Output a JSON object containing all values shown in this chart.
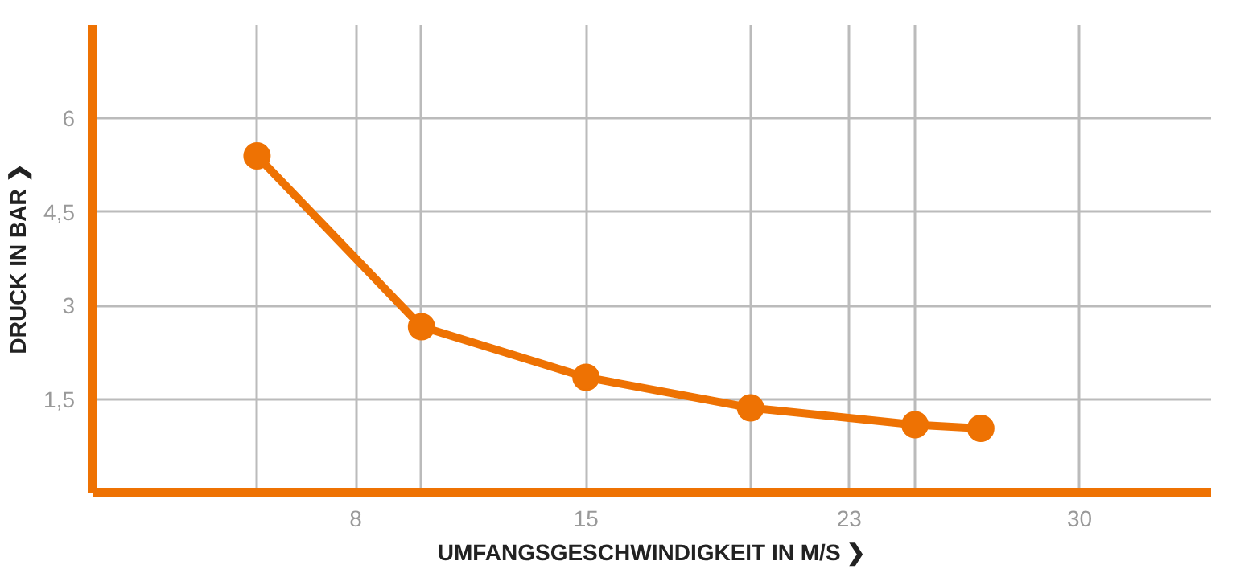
{
  "chart_data": {
    "type": "line",
    "xlabel": "UMFANGSGESCHWINDIGKEIT IN M/S ❯",
    "ylabel": "DRUCK IN BAR ❯",
    "x": [
      5,
      10,
      15,
      20,
      25,
      27
    ],
    "series": [
      {
        "color": "#ee7203",
        "values": [
          5.4,
          2.66,
          1.85,
          1.36,
          1.09,
          1.03
        ]
      }
    ],
    "xlim": [
      0,
      34
    ],
    "ylim": [
      0,
      7.5
    ],
    "xticks": [
      {
        "value": 5,
        "label": null
      },
      8,
      {
        "value": 10,
        "label": null
      },
      15,
      {
        "value": 20,
        "label": null
      },
      23,
      {
        "value": 25,
        "label": null
      },
      30
    ],
    "yticks": [
      {
        "value": 1.5,
        "label": "1,5"
      },
      3,
      {
        "value": 4.5,
        "label": "4,5"
      },
      6
    ],
    "grid": true,
    "marker": "circle",
    "line_style": "solid"
  }
}
